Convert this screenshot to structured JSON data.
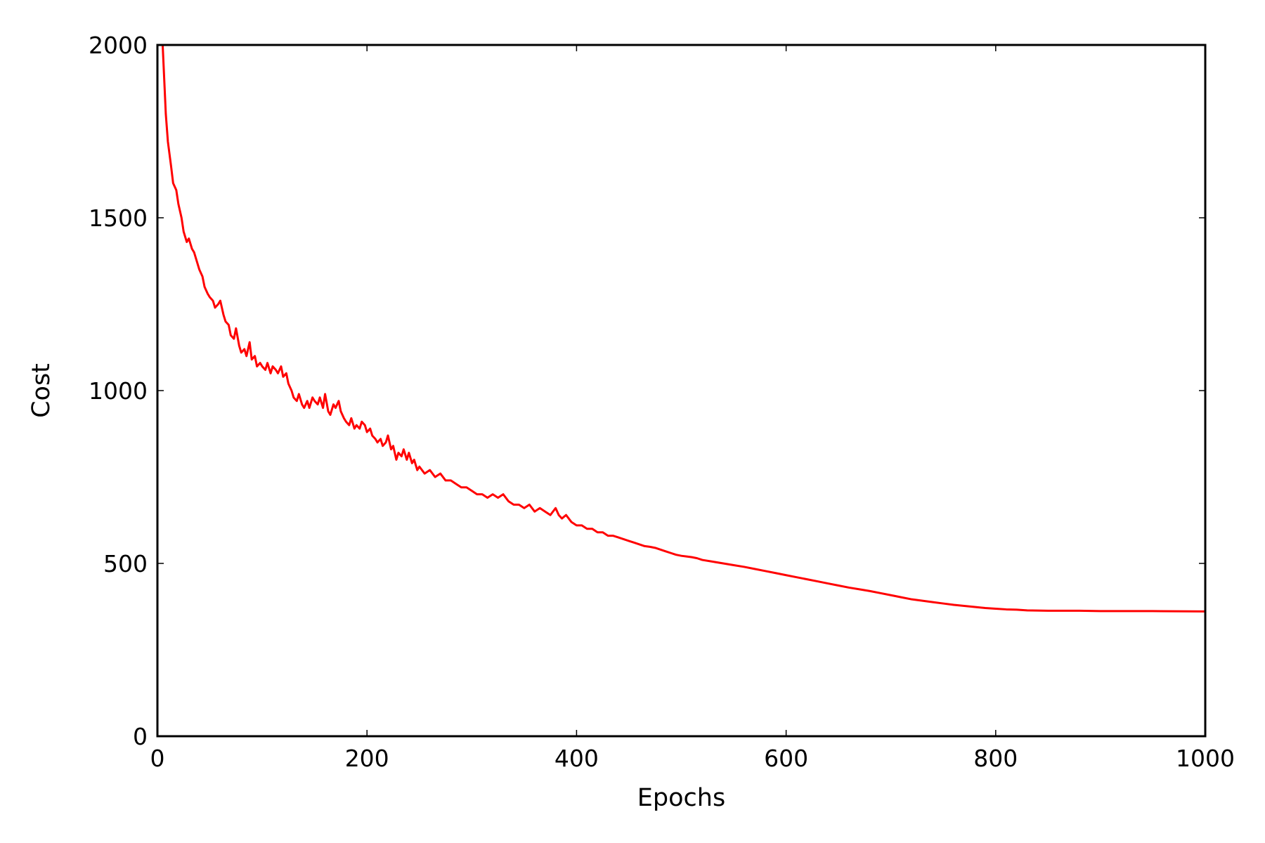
{
  "chart_data": {
    "type": "line",
    "title": "",
    "xlabel": "Epochs",
    "ylabel": "Cost",
    "xlim": [
      0,
      1000
    ],
    "ylim": [
      0,
      2000
    ],
    "xticks": [
      "0",
      "200",
      "400",
      "600",
      "800",
      "1000"
    ],
    "yticks": [
      "0",
      "500",
      "1000",
      "1500",
      "2000"
    ],
    "grid": false,
    "legend": "none",
    "series": [
      {
        "color": "#ff0000",
        "x": [
          5,
          8,
          10,
          13,
          15,
          18,
          20,
          23,
          25,
          28,
          30,
          33,
          35,
          38,
          40,
          43,
          45,
          48,
          50,
          53,
          55,
          58,
          60,
          63,
          65,
          68,
          70,
          73,
          75,
          78,
          80,
          83,
          85,
          88,
          90,
          93,
          95,
          98,
          100,
          103,
          105,
          108,
          110,
          113,
          115,
          118,
          120,
          123,
          125,
          128,
          130,
          133,
          135,
          138,
          140,
          143,
          145,
          148,
          150,
          153,
          155,
          158,
          160,
          163,
          165,
          168,
          170,
          173,
          175,
          178,
          180,
          183,
          185,
          188,
          190,
          193,
          195,
          198,
          200,
          203,
          205,
          208,
          210,
          213,
          215,
          218,
          220,
          223,
          225,
          228,
          230,
          233,
          235,
          238,
          240,
          243,
          245,
          248,
          250,
          255,
          260,
          265,
          270,
          275,
          280,
          285,
          290,
          295,
          300,
          305,
          310,
          315,
          320,
          325,
          330,
          335,
          340,
          345,
          350,
          355,
          360,
          365,
          370,
          375,
          380,
          383,
          386,
          390,
          395,
          400,
          405,
          410,
          415,
          420,
          425,
          430,
          435,
          440,
          445,
          450,
          455,
          460,
          465,
          470,
          475,
          480,
          485,
          490,
          495,
          500,
          505,
          510,
          515,
          520,
          530,
          540,
          550,
          560,
          570,
          580,
          590,
          600,
          610,
          620,
          630,
          640,
          650,
          660,
          670,
          680,
          690,
          700,
          710,
          720,
          730,
          740,
          750,
          760,
          770,
          780,
          790,
          800,
          810,
          820,
          830,
          850,
          880,
          900,
          950,
          1000
        ],
        "y": [
          2000,
          1800,
          1720,
          1650,
          1600,
          1580,
          1540,
          1500,
          1460,
          1430,
          1440,
          1410,
          1400,
          1370,
          1350,
          1330,
          1300,
          1280,
          1270,
          1260,
          1240,
          1250,
          1260,
          1220,
          1200,
          1190,
          1160,
          1150,
          1180,
          1130,
          1110,
          1120,
          1100,
          1140,
          1090,
          1100,
          1070,
          1080,
          1070,
          1060,
          1080,
          1050,
          1070,
          1060,
          1050,
          1070,
          1040,
          1050,
          1020,
          1000,
          980,
          970,
          990,
          960,
          950,
          970,
          950,
          980,
          970,
          960,
          980,
          950,
          990,
          940,
          930,
          960,
          950,
          970,
          940,
          920,
          910,
          900,
          920,
          890,
          900,
          890,
          910,
          900,
          880,
          890,
          870,
          860,
          850,
          860,
          840,
          850,
          870,
          830,
          840,
          800,
          820,
          810,
          830,
          800,
          820,
          790,
          800,
          770,
          780,
          760,
          770,
          750,
          760,
          740,
          740,
          730,
          720,
          720,
          710,
          700,
          700,
          690,
          700,
          690,
          700,
          680,
          670,
          670,
          660,
          670,
          650,
          660,
          650,
          640,
          660,
          640,
          630,
          640,
          620,
          610,
          610,
          600,
          600,
          590,
          590,
          580,
          580,
          575,
          570,
          565,
          560,
          555,
          550,
          548,
          545,
          540,
          535,
          530,
          525,
          522,
          520,
          518,
          515,
          510,
          505,
          500,
          495,
          490,
          484,
          478,
          472,
          466,
          460,
          454,
          448,
          442,
          436,
          430,
          425,
          420,
          414,
          408,
          402,
          396,
          392,
          388,
          384,
          380,
          377,
          374,
          371,
          369,
          367,
          366,
          364,
          363,
          363,
          362,
          362,
          361
        ]
      }
    ]
  }
}
